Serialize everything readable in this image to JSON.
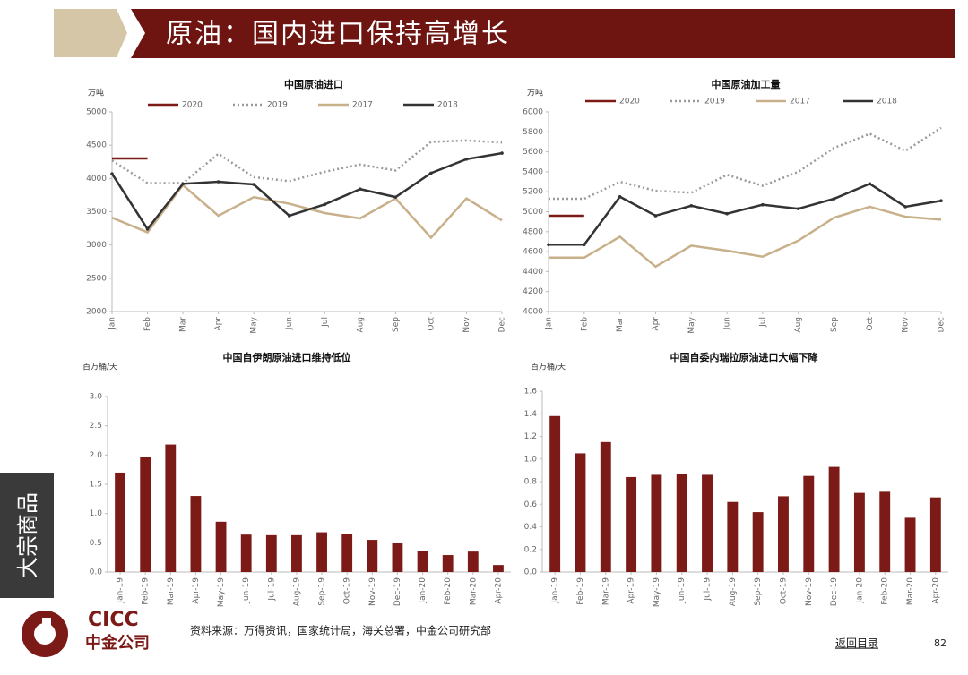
{
  "header": {
    "title": "原油：国内进口保持高增长"
  },
  "sidebar": {
    "label": "大宗商品"
  },
  "footer": {
    "logo_en": "CICC",
    "logo_cn": "中金公司",
    "source": "资料来源：万得资讯，国家统计局，海关总署，中金公司研究部",
    "link": "返回目录",
    "page": "82"
  },
  "chart_data": [
    {
      "type": "line",
      "title": "中国原油进口",
      "unit": "万吨",
      "categories": [
        "Jan",
        "Feb",
        "Mar",
        "Apr",
        "May",
        "Jun",
        "Jul",
        "Aug",
        "Sep",
        "Oct",
        "Nov",
        "Dec"
      ],
      "ylim": [
        2000,
        5000
      ],
      "yticks": [
        2000,
        2500,
        3000,
        3500,
        4000,
        4500,
        5000
      ],
      "series": [
        {
          "name": "2020",
          "color": "#7b1a16",
          "dash": "solid",
          "values": [
            4300,
            4300,
            null,
            null,
            null,
            null,
            null,
            null,
            null,
            null,
            null,
            null
          ]
        },
        {
          "name": "2019",
          "color": "#9a9a9a",
          "dash": "dotted",
          "values": [
            4270,
            3930,
            3930,
            4370,
            4020,
            3960,
            4100,
            4210,
            4120,
            4550,
            4570,
            4540
          ]
        },
        {
          "name": "2017",
          "color": "#c8b08a",
          "dash": "solid",
          "values": [
            3410,
            3190,
            3900,
            3440,
            3720,
            3620,
            3480,
            3400,
            3700,
            3110,
            3700,
            3370
          ]
        },
        {
          "name": "2018",
          "color": "#333333",
          "dash": "solid",
          "marker": true,
          "values": [
            4070,
            3240,
            3920,
            3950,
            3910,
            3440,
            3610,
            3840,
            3720,
            4080,
            4290,
            4380
          ]
        }
      ]
    },
    {
      "type": "line",
      "title": "中国原油加工量",
      "unit": "万吨",
      "categories": [
        "Jan",
        "Feb",
        "Mar",
        "Apr",
        "May",
        "Jun",
        "Jul",
        "Aug",
        "Sep",
        "Oct",
        "Nov",
        "Dec"
      ],
      "ylim": [
        4000,
        6000
      ],
      "yticks": [
        4000,
        4200,
        4400,
        4600,
        4800,
        5000,
        5200,
        5400,
        5600,
        5800,
        6000
      ],
      "series": [
        {
          "name": "2020",
          "color": "#7b1a16",
          "dash": "solid",
          "values": [
            4960,
            4960,
            null,
            null,
            null,
            null,
            null,
            null,
            null,
            null,
            null,
            null
          ]
        },
        {
          "name": "2019",
          "color": "#9a9a9a",
          "dash": "dotted",
          "values": [
            5130,
            5130,
            5300,
            5210,
            5190,
            5370,
            5260,
            5400,
            5640,
            5780,
            5610,
            5840
          ]
        },
        {
          "name": "2017",
          "color": "#c8b08a",
          "dash": "solid",
          "values": [
            4540,
            4540,
            4750,
            4450,
            4660,
            4610,
            4550,
            4710,
            4940,
            5050,
            4950,
            4920
          ]
        },
        {
          "name": "2018",
          "color": "#333333",
          "dash": "solid",
          "marker": true,
          "values": [
            4670,
            4670,
            5150,
            4960,
            5060,
            4980,
            5070,
            5030,
            5130,
            5280,
            5050,
            5110
          ]
        }
      ]
    },
    {
      "type": "bar",
      "title": "中国自伊朗原油进口维持低位",
      "unit": "百万桶/天",
      "color": "#7b1a16",
      "categories": [
        "Jan-19",
        "Feb-19",
        "Mar-19",
        "Apr-19",
        "May-19",
        "Jun-19",
        "Jul-19",
        "Aug-19",
        "Sep-19",
        "Oct-19",
        "Nov-19",
        "Dec-19",
        "Jan-20",
        "Feb-20",
        "Mar-20",
        "Apr-20"
      ],
      "values": [
        1.7,
        1.97,
        2.18,
        1.3,
        0.86,
        0.64,
        0.63,
        0.63,
        0.68,
        0.65,
        0.55,
        0.49,
        0.36,
        0.29,
        0.35,
        0.12
      ],
      "ylim": [
        0,
        3
      ],
      "yticks": [
        {
          "value": 0,
          "label": "0.0"
        },
        0.5,
        {
          "value": 1,
          "label": "1.0"
        },
        1.5,
        {
          "value": 2,
          "label": "2.0"
        },
        2.5,
        {
          "value": 3,
          "label": "3.0"
        }
      ]
    },
    {
      "type": "bar",
      "title": "中国自委内瑞拉原油进口大幅下降",
      "unit": "百万桶/天",
      "color": "#7b1a16",
      "categories": [
        "Jan-19",
        "Feb-19",
        "Mar-19",
        "Apr-19",
        "May-19",
        "Jun-19",
        "Jul-19",
        "Aug-19",
        "Sep-19",
        "Oct-19",
        "Nov-19",
        "Dec-19",
        "Jan-20",
        "Feb-20",
        "Mar-20",
        "Apr-20"
      ],
      "values": [
        1.38,
        1.05,
        1.15,
        0.84,
        0.86,
        0.87,
        0.86,
        0.62,
        0.53,
        0.67,
        0.85,
        0.93,
        0.7,
        0.71,
        0.48,
        0.66
      ],
      "ylim": [
        0,
        1.6
      ],
      "yticks": [
        {
          "value": 0,
          "label": "0.0"
        },
        0.2,
        0.4,
        0.6,
        0.8,
        {
          "value": 1,
          "label": "1.0"
        },
        1.2,
        1.4,
        1.6
      ]
    }
  ]
}
